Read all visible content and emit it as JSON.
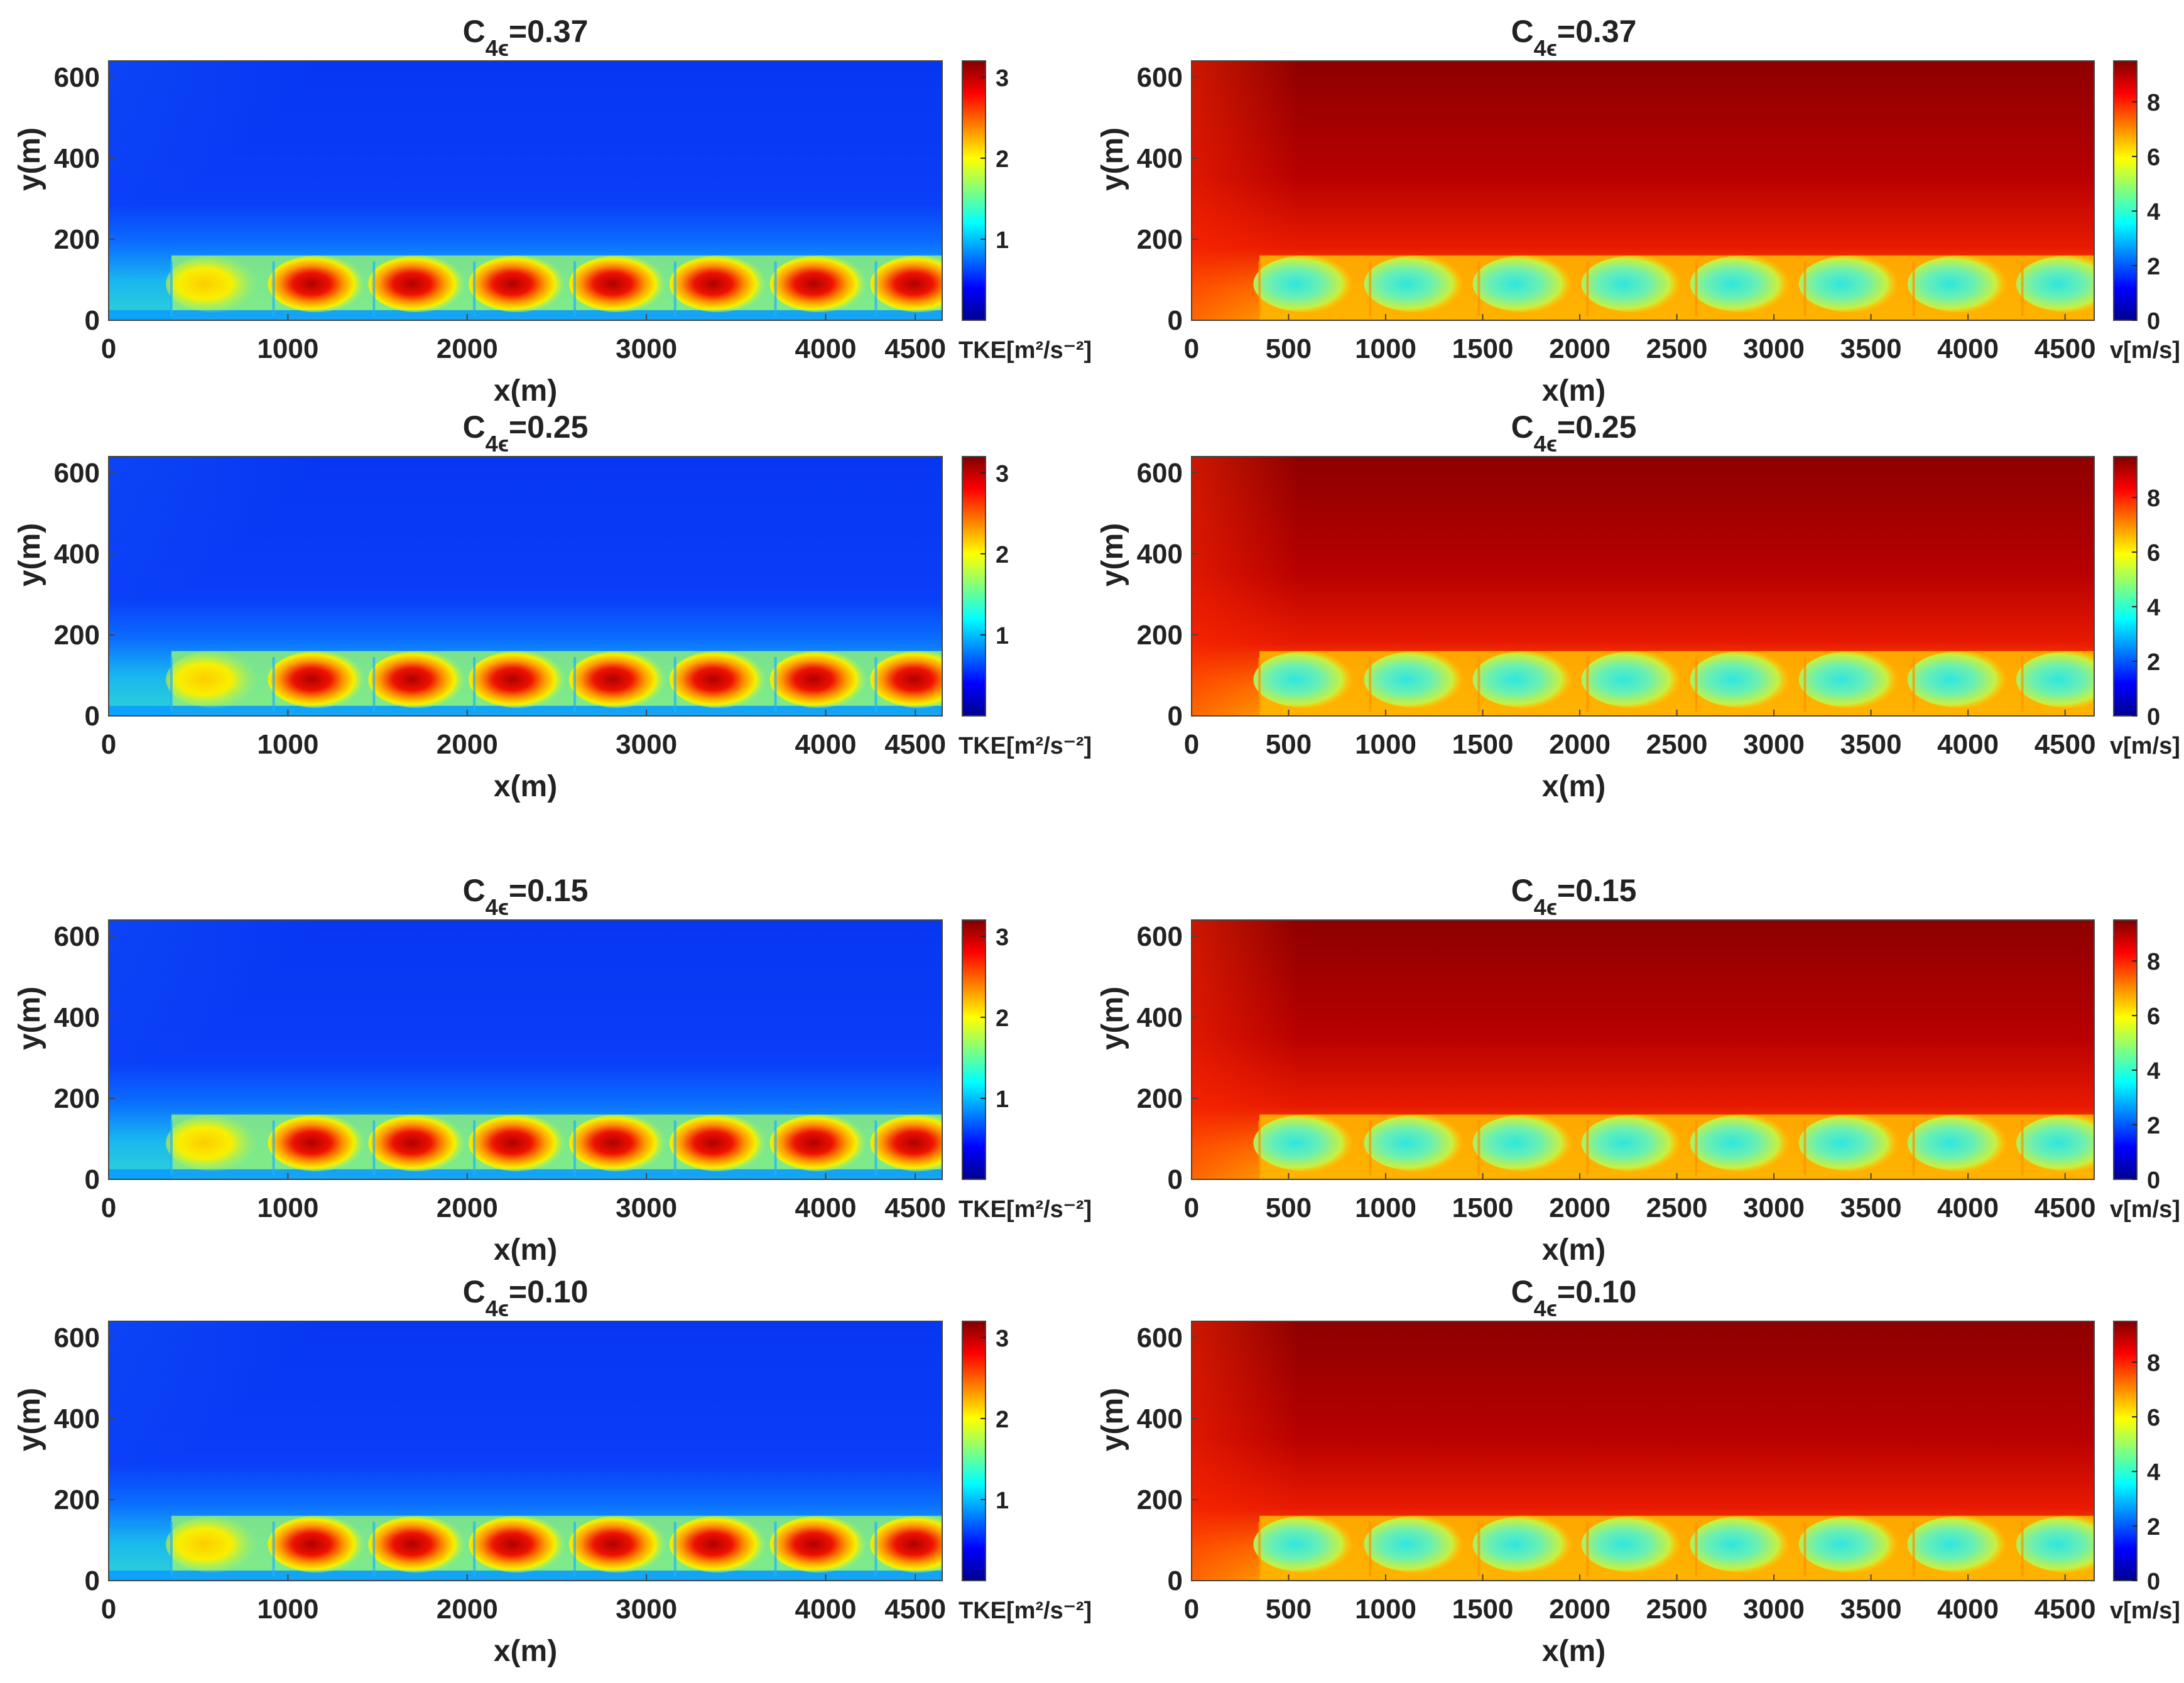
{
  "figure": {
    "description_free": true
  },
  "chart_data": [
    {
      "type": "heatmap",
      "quantity": "tke",
      "title_main": "C",
      "title_sub": "4ϵ",
      "title_value": "=0.37",
      "xlabel": "x(m)",
      "ylabel": "y(m)",
      "xlim": [
        0,
        4650
      ],
      "ylim": [
        0,
        640
      ],
      "xticks": [
        0,
        1000,
        2000,
        3000,
        4000,
        4500
      ],
      "yticks": [
        0,
        200,
        400,
        600
      ],
      "colorbar": {
        "ticks": [
          1,
          2,
          3
        ],
        "range": [
          0,
          3.2
        ],
        "label": "TKE[m²/s⁻²]"
      },
      "turbine_x": [
        350,
        920,
        1480,
        2040,
        2600,
        3160,
        3720,
        4280
      ],
      "wake_height_m": [
        20,
        140
      ]
    },
    {
      "type": "heatmap",
      "quantity": "velocity",
      "title_main": "C",
      "title_sub": "4ϵ",
      "title_value": "=0.37",
      "xlabel": "x(m)",
      "ylabel": "y(m)",
      "xlim": [
        0,
        4650
      ],
      "ylim": [
        0,
        640
      ],
      "xticks": [
        0,
        500,
        1000,
        1500,
        2000,
        2500,
        3000,
        3500,
        4000,
        4500
      ],
      "yticks": [
        0,
        200,
        400,
        600
      ],
      "colorbar": {
        "ticks": [
          0,
          2,
          4,
          6,
          8
        ],
        "range": [
          0,
          9.5
        ],
        "label": "v[m/s]"
      },
      "turbine_x": [
        350,
        920,
        1480,
        2040,
        2600,
        3160,
        3720,
        4280
      ],
      "wake_height_m": [
        20,
        140
      ]
    },
    {
      "type": "heatmap",
      "quantity": "tke",
      "title_main": "C",
      "title_sub": "4ϵ",
      "title_value": "=0.25",
      "xlabel": "x(m)",
      "ylabel": "y(m)",
      "xlim": [
        0,
        4650
      ],
      "ylim": [
        0,
        640
      ],
      "xticks": [
        0,
        1000,
        2000,
        3000,
        4000,
        4500
      ],
      "yticks": [
        0,
        200,
        400,
        600
      ],
      "colorbar": {
        "ticks": [
          1,
          2,
          3
        ],
        "range": [
          0,
          3.2
        ],
        "label": "TKE[m²/s⁻²]"
      },
      "turbine_x": [
        350,
        920,
        1480,
        2040,
        2600,
        3160,
        3720,
        4280
      ],
      "wake_height_m": [
        20,
        140
      ]
    },
    {
      "type": "heatmap",
      "quantity": "velocity",
      "title_main": "C",
      "title_sub": "4ϵ",
      "title_value": "=0.25",
      "xlabel": "x(m)",
      "ylabel": "y(m)",
      "xlim": [
        0,
        4650
      ],
      "ylim": [
        0,
        640
      ],
      "xticks": [
        0,
        500,
        1000,
        1500,
        2000,
        2500,
        3000,
        3500,
        4000,
        4500
      ],
      "yticks": [
        0,
        200,
        400,
        600
      ],
      "colorbar": {
        "ticks": [
          0,
          2,
          4,
          6,
          8
        ],
        "range": [
          0,
          9.5
        ],
        "label": "v[m/s]"
      },
      "turbine_x": [
        350,
        920,
        1480,
        2040,
        2600,
        3160,
        3720,
        4280
      ],
      "wake_height_m": [
        20,
        140
      ]
    },
    {
      "type": "heatmap",
      "quantity": "tke",
      "title_main": "C",
      "title_sub": "4ϵ",
      "title_value": "=0.15",
      "xlabel": "x(m)",
      "ylabel": "y(m)",
      "xlim": [
        0,
        4650
      ],
      "ylim": [
        0,
        640
      ],
      "xticks": [
        0,
        1000,
        2000,
        3000,
        4000,
        4500
      ],
      "yticks": [
        0,
        200,
        400,
        600
      ],
      "colorbar": {
        "ticks": [
          1,
          2,
          3
        ],
        "range": [
          0,
          3.2
        ],
        "label": "TKE[m²/s⁻²]"
      },
      "turbine_x": [
        350,
        920,
        1480,
        2040,
        2600,
        3160,
        3720,
        4280
      ],
      "wake_height_m": [
        20,
        140
      ]
    },
    {
      "type": "heatmap",
      "quantity": "velocity",
      "title_main": "C",
      "title_sub": "4ϵ",
      "title_value": "=0.15",
      "xlabel": "x(m)",
      "ylabel": "y(m)",
      "xlim": [
        0,
        4650
      ],
      "ylim": [
        0,
        640
      ],
      "xticks": [
        0,
        500,
        1000,
        1500,
        2000,
        2500,
        3000,
        3500,
        4000,
        4500
      ],
      "yticks": [
        0,
        200,
        400,
        600
      ],
      "colorbar": {
        "ticks": [
          0,
          2,
          4,
          6,
          8
        ],
        "range": [
          0,
          9.5
        ],
        "label": "v[m/s]"
      },
      "turbine_x": [
        350,
        920,
        1480,
        2040,
        2600,
        3160,
        3720,
        4280
      ],
      "wake_height_m": [
        20,
        140
      ]
    },
    {
      "type": "heatmap",
      "quantity": "tke",
      "title_main": "C",
      "title_sub": "4ϵ",
      "title_value": "=0.10",
      "xlabel": "x(m)",
      "ylabel": "y(m)",
      "xlim": [
        0,
        4650
      ],
      "ylim": [
        0,
        640
      ],
      "xticks": [
        0,
        1000,
        2000,
        3000,
        4000,
        4500
      ],
      "yticks": [
        0,
        200,
        400,
        600
      ],
      "colorbar": {
        "ticks": [
          1,
          2,
          3
        ],
        "range": [
          0,
          3.2
        ],
        "label": "TKE[m²/s⁻²]"
      },
      "turbine_x": [
        350,
        920,
        1480,
        2040,
        2600,
        3160,
        3720,
        4280
      ],
      "wake_height_m": [
        20,
        140
      ]
    },
    {
      "type": "heatmap",
      "quantity": "velocity",
      "title_main": "C",
      "title_sub": "4ϵ",
      "title_value": "=0.10",
      "xlabel": "x(m)",
      "ylabel": "y(m)",
      "xlim": [
        0,
        4650
      ],
      "ylim": [
        0,
        640
      ],
      "xticks": [
        0,
        500,
        1000,
        1500,
        2000,
        2500,
        3000,
        3500,
        4000,
        4500
      ],
      "yticks": [
        0,
        200,
        400,
        600
      ],
      "colorbar": {
        "ticks": [
          0,
          2,
          4,
          6,
          8
        ],
        "range": [
          0,
          9.5
        ],
        "label": "v[m/s]"
      },
      "turbine_x": [
        350,
        920,
        1480,
        2040,
        2600,
        3160,
        3720,
        4280
      ],
      "wake_height_m": [
        20,
        140
      ]
    }
  ]
}
